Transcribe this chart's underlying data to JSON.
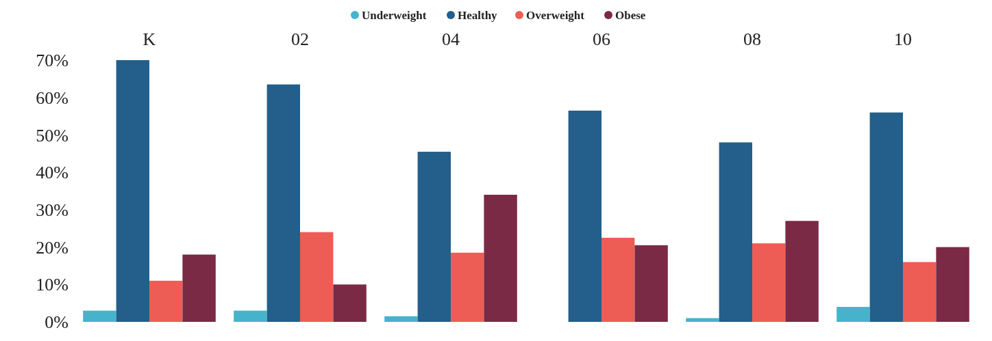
{
  "chart_data": {
    "type": "bar",
    "categories": [
      "K",
      "02",
      "04",
      "06",
      "08",
      "10"
    ],
    "series": [
      {
        "name": "Underweight",
        "color": "#46b3cc",
        "values": [
          3,
          3,
          1.5,
          0,
          1,
          4
        ]
      },
      {
        "name": "Healthy",
        "color": "#235f8a",
        "values": [
          70,
          63.5,
          45.5,
          56.5,
          48,
          56
        ]
      },
      {
        "name": "Overweight",
        "color": "#ee5d55",
        "values": [
          11,
          24,
          18.5,
          22.5,
          21,
          16
        ]
      },
      {
        "name": "Obese",
        "color": "#7a2a45",
        "values": [
          18,
          10,
          34,
          20.5,
          27,
          20
        ]
      }
    ],
    "ylim": [
      0,
      70
    ],
    "yticks": [
      {
        "value": 0,
        "label": "0%"
      },
      {
        "value": 10,
        "label": "10%"
      },
      {
        "value": 20,
        "label": "20%"
      },
      {
        "value": 30,
        "label": "30%"
      },
      {
        "value": 40,
        "label": "40%"
      },
      {
        "value": 50,
        "label": "50%"
      },
      {
        "value": 60,
        "label": "60%"
      },
      {
        "value": 70,
        "label": "70%"
      }
    ],
    "legend": "top",
    "grid": false
  }
}
